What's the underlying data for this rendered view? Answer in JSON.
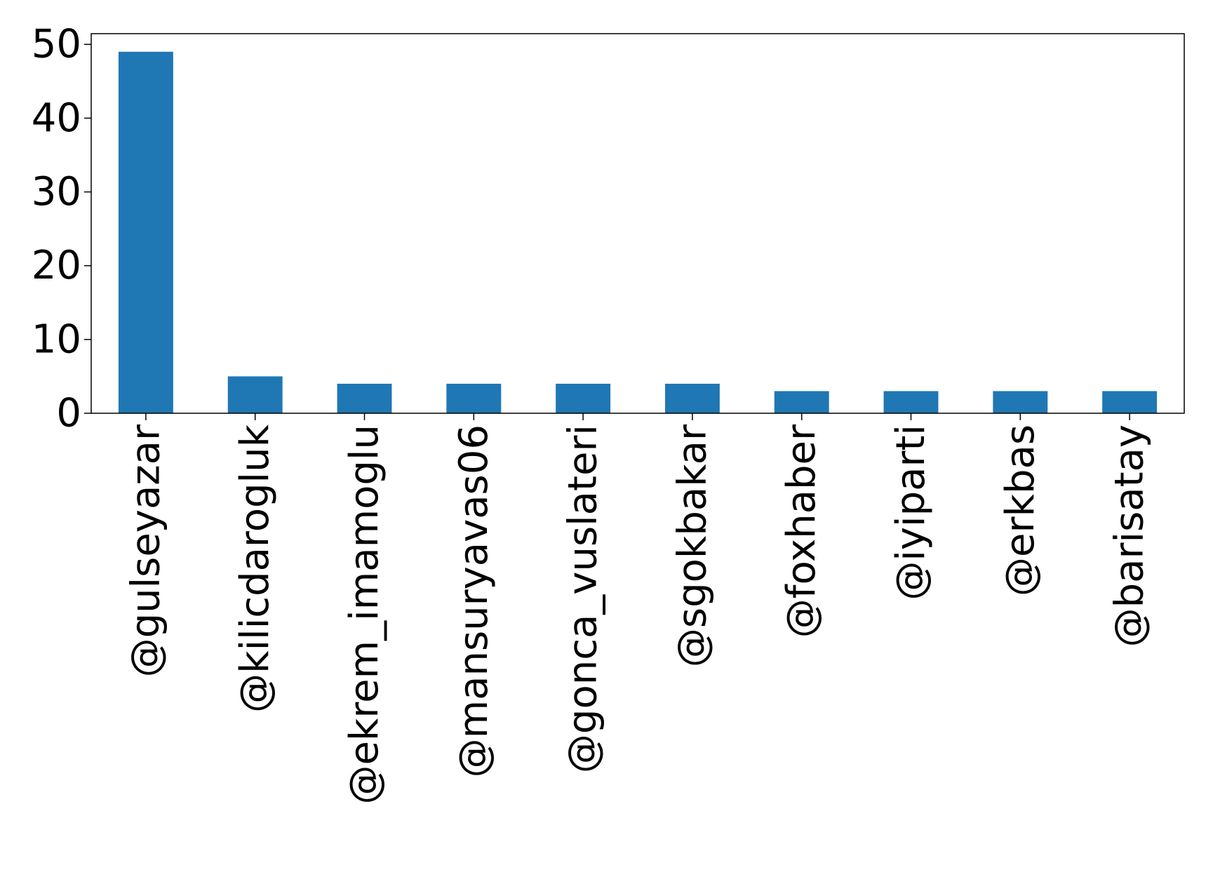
{
  "chart_data": {
    "type": "bar",
    "title": "",
    "xlabel": "",
    "ylabel": "",
    "categories": [
      "@gulseyazar",
      "@kilicdarogluk",
      "@ekrem_imamoglu",
      "@mansuryavas06",
      "@gonca_vuslateri",
      "@sgokbakar",
      "@foxhaber",
      "@iyiparti",
      "@erkbas",
      "@barisatay"
    ],
    "values": [
      49,
      5,
      4,
      4,
      4,
      4,
      3,
      3,
      3,
      3
    ],
    "ylim": [
      0,
      51.45
    ],
    "yticks": [
      0,
      10,
      20,
      30,
      40,
      50
    ],
    "ytick_labels": [
      "0",
      "10",
      "20",
      "30",
      "40",
      "50"
    ],
    "bar_color": "#1f77b4",
    "grid": false,
    "legend": "none"
  }
}
